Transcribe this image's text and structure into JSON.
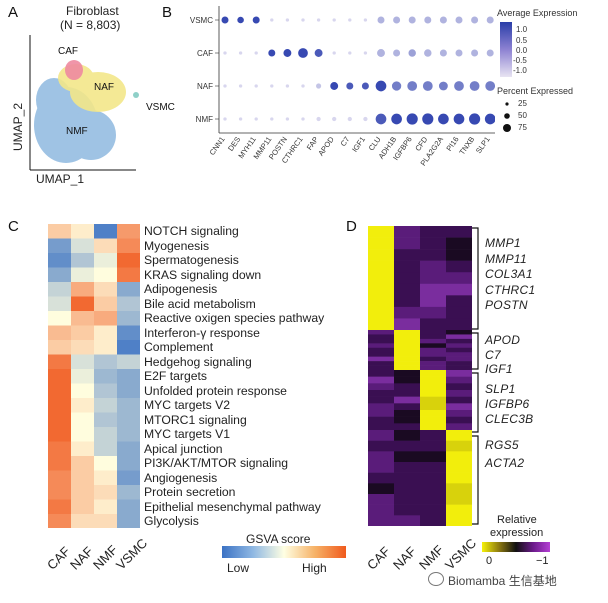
{
  "panelA": {
    "letter": "A",
    "title": "Fibroblast",
    "subtitle": "(N = 8,803)",
    "xlabel": "UMAP_1",
    "ylabel": "UMAP_2",
    "clusters": [
      {
        "name": "CAF",
        "color": "#e8637a"
      },
      {
        "name": "NAF",
        "color": "#f2e36b"
      },
      {
        "name": "NMF",
        "color": "#7fb3df"
      },
      {
        "name": "VSMC",
        "color": "#8fd0c8"
      }
    ]
  },
  "panelB": {
    "letter": "B",
    "rows": [
      "VSMC",
      "CAF",
      "NAF",
      "NMF"
    ],
    "genes": [
      "CNN1",
      "DES",
      "MYH11",
      "MMP11",
      "POSTN",
      "CTHRC1",
      "FAP",
      "APOD",
      "C7",
      "IGF1",
      "CLU",
      "ADH1B",
      "IGFBP6",
      "CFD",
      "PLA2G2A",
      "PI16",
      "TNXB",
      "SLP1"
    ],
    "avg_expr_title": "Average Expression",
    "avg_ticks": [
      "1.0",
      "0.5",
      "0.0",
      "-0.5",
      "-1.0"
    ],
    "pct_title": "Percent Expressed",
    "pct_values": [
      "25",
      "50",
      "75"
    ],
    "dots": [
      [
        0.9,
        0.9,
        0.9,
        0.1,
        0.1,
        0.1,
        0.1,
        0.1,
        0.1,
        0.1,
        0.3,
        0.3,
        0.3,
        0.3,
        0.3,
        0.3,
        0.3,
        0.3
      ],
      [
        0.1,
        0.1,
        0.1,
        0.9,
        0.9,
        0.9,
        0.8,
        0.1,
        0.1,
        0.1,
        0.3,
        0.3,
        0.4,
        0.3,
        0.3,
        0.3,
        0.3,
        0.3
      ],
      [
        0.1,
        0.1,
        0.1,
        0.1,
        0.1,
        0.1,
        0.2,
        0.9,
        0.8,
        0.8,
        0.9,
        0.6,
        0.6,
        0.6,
        0.6,
        0.6,
        0.6,
        0.6
      ],
      [
        0.1,
        0.1,
        0.1,
        0.1,
        0.1,
        0.1,
        0.1,
        0.1,
        0.1,
        0.1,
        0.8,
        0.9,
        0.9,
        0.9,
        0.9,
        0.9,
        0.9,
        0.9
      ]
    ],
    "sizes": [
      [
        0.5,
        0.45,
        0.5,
        0.1,
        0.1,
        0.1,
        0.1,
        0.1,
        0.1,
        0.1,
        0.5,
        0.5,
        0.5,
        0.5,
        0.5,
        0.5,
        0.5,
        0.5
      ],
      [
        0.1,
        0.1,
        0.1,
        0.5,
        0.6,
        0.8,
        0.6,
        0.1,
        0.1,
        0.1,
        0.6,
        0.5,
        0.55,
        0.55,
        0.5,
        0.5,
        0.5,
        0.5
      ],
      [
        0.1,
        0.1,
        0.1,
        0.1,
        0.1,
        0.1,
        0.3,
        0.6,
        0.5,
        0.5,
        0.9,
        0.75,
        0.8,
        0.8,
        0.7,
        0.8,
        0.8,
        0.8
      ],
      [
        0.1,
        0.1,
        0.1,
        0.1,
        0.1,
        0.1,
        0.2,
        0.2,
        0.2,
        0.2,
        0.9,
        0.9,
        0.95,
        0.95,
        0.9,
        0.9,
        0.95,
        0.9
      ]
    ]
  },
  "panelC": {
    "letter": "C",
    "columns": [
      "CAF",
      "NAF",
      "NMF",
      "VSMC"
    ],
    "pathways": [
      "NOTCH signaling",
      "Myogenesis",
      "Spermatogenesis",
      "KRAS signaling down",
      "Adipogenesis",
      "Bile acid metabolism",
      "Reactive oxigen species pathway",
      "Interferon-γ response",
      "Complement",
      "Hedgehog signaling",
      "E2F targets",
      "Unfolded protein response",
      "MYC targets V2",
      "MTORC1 signaling",
      "MYC targets V1",
      "Apical junction",
      "PI3K/AKT/MTOR signaling",
      "Angiogenesis",
      "Protein secretion",
      "Epithelial mesenchymal pathway",
      "Glycolysis"
    ],
    "scores": [
      [
        0.3,
        0.1,
        -0.9,
        0.6
      ],
      [
        -0.7,
        -0.2,
        0.2,
        0.7
      ],
      [
        -0.8,
        -0.4,
        -0.1,
        0.9
      ],
      [
        -0.6,
        -0.1,
        0.0,
        0.8
      ],
      [
        -0.3,
        0.5,
        0.2,
        -0.6
      ],
      [
        -0.2,
        0.9,
        0.3,
        -0.4
      ],
      [
        0.0,
        0.4,
        0.5,
        -0.5
      ],
      [
        0.4,
        0.3,
        0.1,
        -0.8
      ],
      [
        0.3,
        0.2,
        0.1,
        -0.9
      ],
      [
        0.8,
        -0.2,
        -0.4,
        -0.3
      ],
      [
        0.9,
        -0.1,
        -0.5,
        -0.6
      ],
      [
        0.9,
        0.0,
        -0.4,
        -0.6
      ],
      [
        0.9,
        0.1,
        -0.3,
        -0.5
      ],
      [
        0.9,
        0.0,
        -0.4,
        -0.5
      ],
      [
        0.9,
        0.0,
        -0.3,
        -0.5
      ],
      [
        0.8,
        0.1,
        -0.3,
        -0.6
      ],
      [
        0.8,
        0.3,
        0.0,
        -0.6
      ],
      [
        0.7,
        0.3,
        0.1,
        -0.7
      ],
      [
        0.7,
        0.3,
        0.2,
        -0.5
      ],
      [
        0.8,
        0.3,
        0.1,
        -0.6
      ],
      [
        0.7,
        0.2,
        0.2,
        -0.6
      ]
    ],
    "legend_title": "GSVA score",
    "legend_low": "Low",
    "legend_high": "High"
  },
  "panelD": {
    "letter": "D",
    "columns": [
      "CAF",
      "NAF",
      "NMF",
      "VSMC"
    ],
    "gene_groups": [
      {
        "genes": [
          "MMP1",
          "MMP11",
          "COL3A1",
          "CTHRC1",
          "POSTN"
        ]
      },
      {
        "genes": [
          "APOD",
          "C7",
          "IGF1"
        ]
      },
      {
        "genes": [
          "SLP1",
          "IGFBP6",
          "CLEC3B"
        ]
      },
      {
        "genes": [
          "RGS5",
          "ACTA2"
        ]
      }
    ],
    "legend_title": "Relative",
    "legend_title2": "expression",
    "legend_ticks": [
      "0",
      "−1"
    ]
  },
  "watermark": "Biomamba 生信基地"
}
